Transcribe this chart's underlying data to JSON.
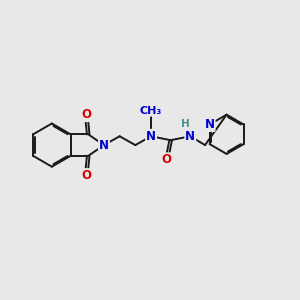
{
  "background_color": "#e8e8e8",
  "bond_color": "#1a1a1a",
  "bond_width": 1.4,
  "dbo": 0.012,
  "atom_colors": {
    "N": "#0000cc",
    "O": "#dd0000",
    "H": "#4a9090",
    "C": "#1a1a1a"
  },
  "fs": 8.5
}
